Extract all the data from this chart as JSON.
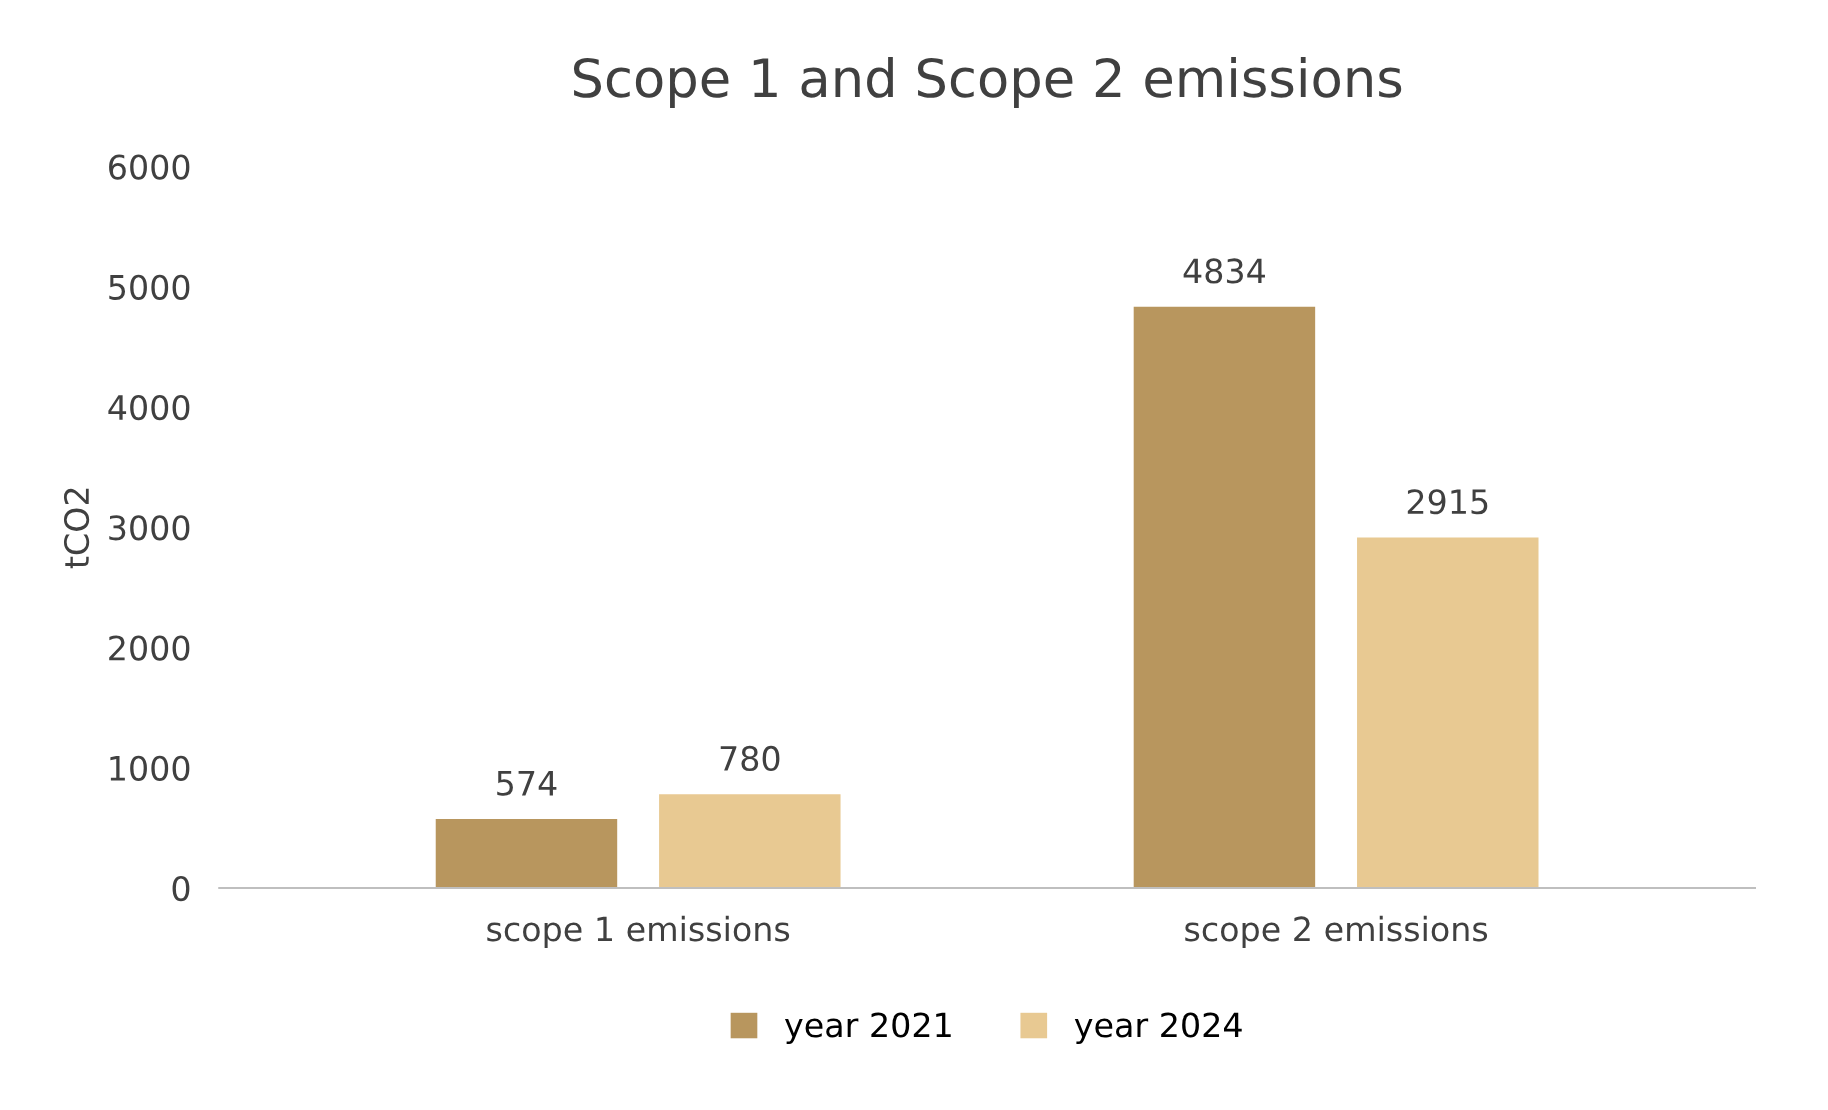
{
  "chart_data": {
    "type": "bar",
    "title": "Scope 1 and Scope 2 emissions",
    "ylabel": "tCO2",
    "categories": [
      "scope 1 emissions",
      "scope 2 emissions"
    ],
    "series": [
      {
        "name": "year 2021",
        "color": "#b8965e",
        "values": [
          574,
          4834
        ]
      },
      {
        "name": "year 2024",
        "color": "#e8c992",
        "values": [
          780,
          2915
        ]
      }
    ],
    "ylim": [
      0,
      6000
    ],
    "yticks": [
      0,
      1000,
      2000,
      3000,
      4000,
      5000,
      6000
    ],
    "data_labels": true,
    "grid": false,
    "legend": "bottom"
  }
}
